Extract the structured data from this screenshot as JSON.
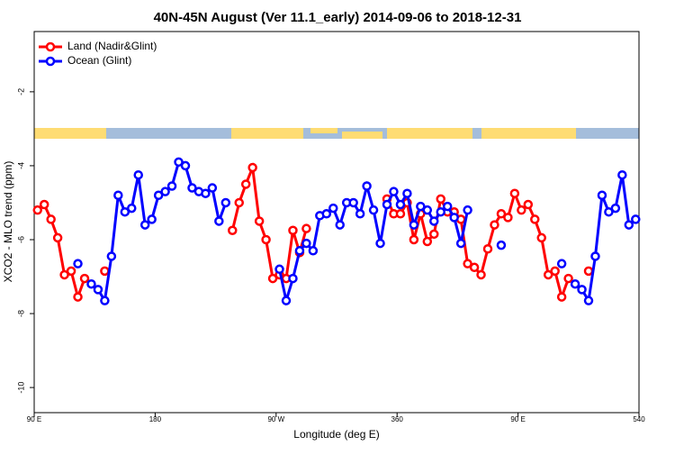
{
  "chart_data": {
    "type": "line",
    "title": "40N-45N August (Ver 11.1_early)   2014-09-06 to 2018-12-31",
    "x_label": "Longitude (deg E)",
    "y_label": "XCO2 - MLO trend (ppm)",
    "x": [
      92.5,
      97.5,
      102.5,
      107.5,
      112.5,
      117.5,
      122.5,
      127.5,
      132.5,
      137.5,
      142.5,
      147.5,
      152.5,
      157.5,
      162.5,
      167.5,
      172.5,
      177.5,
      182.5,
      187.5,
      192.5,
      197.5,
      202.5,
      207.5,
      212.5,
      217.5,
      222.5,
      227.5,
      232.5,
      237.5,
      242.5,
      247.5,
      252.5,
      257.5,
      262.5,
      267.5,
      272.5,
      277.5,
      282.5,
      287.5,
      292.5,
      297.5,
      302.5,
      307.5,
      312.5,
      317.5,
      322.5,
      327.5,
      332.5,
      337.5,
      342.5,
      347.5,
      352.5,
      357.5,
      362.5,
      367.5,
      372.5,
      377.5,
      382.5,
      387.5,
      392.5,
      397.5,
      402.5,
      407.5,
      412.5,
      417.5,
      422.5,
      427.5,
      432.5,
      437.5,
      442.5,
      447.5,
      452.5,
      457.5,
      462.5,
      467.5,
      472.5,
      477.5,
      482.5,
      487.5,
      492.5,
      497.5,
      502.5,
      507.5,
      512.5,
      517.5,
      522.5,
      527.5,
      532.5,
      537.5
    ],
    "series": [
      {
        "name": "Land (Nadir&Glint)",
        "color": "#ff0000",
        "values": [
          -5.2,
          -5.05,
          -5.45,
          -5.95,
          -6.95,
          -6.85,
          -7.55,
          -7.05,
          null,
          null,
          -6.85,
          null,
          null,
          null,
          null,
          null,
          null,
          null,
          null,
          null,
          null,
          null,
          null,
          null,
          null,
          null,
          null,
          null,
          null,
          -5.75,
          -5.0,
          -4.5,
          -4.05,
          -5.5,
          -6.0,
          -7.05,
          -6.95,
          -7.05,
          -5.75,
          -6.35,
          -5.7,
          null,
          null,
          null,
          null,
          null,
          null,
          null,
          null,
          null,
          null,
          null,
          -4.9,
          -5.3,
          -5.3,
          -5.0,
          -6.0,
          -5.3,
          -6.05,
          -5.85,
          -4.9,
          -5.25,
          -5.25,
          -5.45,
          -6.65,
          -6.75,
          -6.95,
          -6.25,
          -5.6,
          -5.3,
          -5.4,
          -4.75,
          -5.2,
          -5.05,
          -5.45,
          -5.95,
          -6.95,
          -6.85,
          -7.55,
          -7.05,
          null,
          null,
          -6.85,
          null,
          null,
          null,
          null,
          null,
          null,
          null
        ]
      },
      {
        "name": "Ocean (Glint)",
        "color": "#0000ff",
        "values": [
          null,
          null,
          null,
          null,
          null,
          null,
          -6.65,
          null,
          -7.2,
          -7.35,
          -7.65,
          -6.45,
          -4.8,
          -5.25,
          -5.15,
          -4.25,
          -5.6,
          -5.45,
          -4.8,
          -4.7,
          -4.55,
          -3.9,
          -4.0,
          -4.6,
          -4.7,
          -4.75,
          -4.6,
          -5.5,
          -5.0,
          null,
          null,
          null,
          null,
          null,
          null,
          null,
          -6.8,
          -7.65,
          -7.05,
          -6.3,
          -6.1,
          -6.3,
          -5.35,
          -5.3,
          -5.15,
          -5.6,
          -5.0,
          -5.0,
          -5.3,
          -4.55,
          -5.2,
          -6.1,
          -5.05,
          -4.7,
          -5.05,
          -4.75,
          -5.6,
          -5.1,
          -5.2,
          -5.5,
          -5.25,
          -5.1,
          -5.4,
          -6.1,
          -5.2,
          null,
          null,
          null,
          null,
          -6.15,
          null,
          null,
          null,
          null,
          null,
          null,
          null,
          null,
          -6.65,
          null,
          -7.2,
          -7.35,
          -7.65,
          -6.45,
          -4.8,
          -5.25,
          -5.15,
          -4.25,
          -5.6,
          -5.45
        ]
      }
    ],
    "xlim": [
      90,
      540
    ],
    "xticks": [
      {
        "value": 90,
        "label": "90 E"
      },
      180,
      {
        "value": 270,
        "label": "90 W"
      },
      360,
      {
        "value": 450,
        "label": "90 E"
      },
      540
    ],
    "ylim": [
      -10.68,
      -0.37
    ],
    "yticks": [
      -2,
      -4,
      -6,
      -8,
      -10
    ],
    "legend": "top-left"
  }
}
